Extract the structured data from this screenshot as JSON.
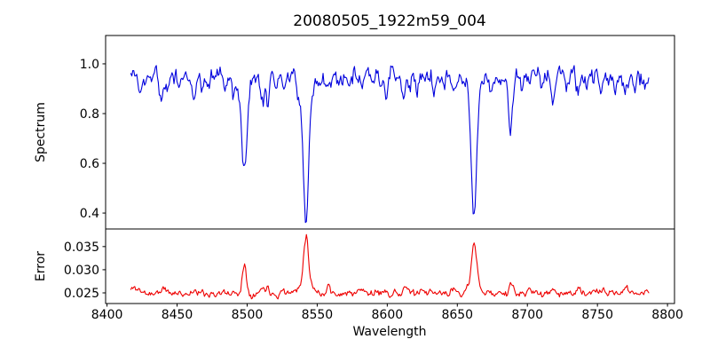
{
  "chart_data": {
    "type": "line",
    "title": "20080505_1922m59_004",
    "xlabel": "Wavelength",
    "xlim": [
      8399,
      8805
    ],
    "xticks": [
      8400,
      8450,
      8500,
      8550,
      8600,
      8650,
      8700,
      8750,
      8800
    ],
    "xtick_labels": [
      "8400",
      "8450",
      "8500",
      "8550",
      "8600",
      "8650",
      "8700",
      "8750",
      "8800"
    ],
    "x_data_range": [
      8417,
      8787
    ],
    "sample_step": 0.7,
    "features_format": "[center_wavelength_angstrom, amplitude, gaussian_sigma_angstrom]",
    "panels": [
      {
        "name": "spectrum",
        "ylabel": "Spectrum",
        "line_color": "#0000dd",
        "ylim": [
          0.336,
          1.114
        ],
        "yticks": [
          0.4,
          0.6,
          0.8,
          1.0
        ],
        "ytick_labels": [
          "0.4",
          "0.6",
          "0.8",
          "1.0"
        ],
        "base_level": 0.955,
        "feature_sign": -1,
        "noise_sigma": 0.034,
        "noise_smooth": 0.5,
        "clamp_max": 1.06,
        "seed": 5,
        "major_lines": [
          {
            "center": 8498,
            "min_flux": 0.58
          },
          {
            "center": 8542,
            "min_flux": 0.38
          },
          {
            "center": 8662,
            "min_flux": 0.38
          },
          {
            "center": 8688,
            "min_flux": 0.71
          }
        ],
        "features": [
          [
            8424,
            0.06,
            1.2
          ],
          [
            8427,
            0.05,
            1.0
          ],
          [
            8439,
            0.1,
            1.3
          ],
          [
            8443,
            0.05,
            1.0
          ],
          [
            8452,
            0.04,
            1.0
          ],
          [
            8462,
            0.08,
            1.2
          ],
          [
            8468,
            0.06,
            1.0
          ],
          [
            8472,
            0.05,
            1.0
          ],
          [
            8484,
            0.04,
            1.0
          ],
          [
            8490,
            0.05,
            1.0
          ],
          [
            8498,
            0.33,
            2.0
          ],
          [
            8498,
            0.04,
            6.0
          ],
          [
            8511,
            0.1,
            1.4
          ],
          [
            8515,
            0.08,
            1.2
          ],
          [
            8521,
            0.05,
            1.0
          ],
          [
            8526,
            0.06,
            1.1
          ],
          [
            8536,
            0.05,
            1.2
          ],
          [
            8542,
            0.52,
            1.9
          ],
          [
            8542,
            0.05,
            7.0
          ],
          [
            8556,
            0.05,
            1.0
          ],
          [
            8560,
            0.04,
            1.0
          ],
          [
            8572,
            0.04,
            1.0
          ],
          [
            8582,
            0.06,
            1.2
          ],
          [
            8590,
            0.04,
            1.0
          ],
          [
            8599,
            0.05,
            1.0
          ],
          [
            8611,
            0.09,
            1.3
          ],
          [
            8621,
            0.05,
            1.0
          ],
          [
            8633,
            0.04,
            1.0
          ],
          [
            8640,
            0.04,
            1.0
          ],
          [
            8648,
            0.08,
            1.2
          ],
          [
            8662,
            0.52,
            1.9
          ],
          [
            8662,
            0.05,
            7.0
          ],
          [
            8674,
            0.06,
            1.1
          ],
          [
            8679,
            0.05,
            1.0
          ],
          [
            8688,
            0.24,
            1.5
          ],
          [
            8696,
            0.05,
            1.0
          ],
          [
            8702,
            0.05,
            1.0
          ],
          [
            8710,
            0.05,
            1.0
          ],
          [
            8718,
            0.09,
            1.3
          ],
          [
            8728,
            0.05,
            1.0
          ],
          [
            8736,
            0.08,
            1.2
          ],
          [
            8742,
            0.05,
            1.0
          ],
          [
            8752,
            0.07,
            1.1
          ],
          [
            8757,
            0.04,
            1.0
          ],
          [
            8763,
            0.05,
            1.0
          ],
          [
            8770,
            0.08,
            1.2
          ],
          [
            8777,
            0.07,
            1.1
          ],
          [
            8784,
            0.05,
            1.0
          ]
        ]
      },
      {
        "name": "error",
        "ylabel": "Error",
        "line_color": "#ee0000",
        "ylim": [
          0.0227,
          0.0388
        ],
        "yticks": [
          0.025,
          0.03,
          0.035
        ],
        "ytick_labels": [
          "0.025",
          "0.030",
          "0.035"
        ],
        "base_level": 0.0249,
        "feature_sign": 1,
        "noise_sigma": 0.0007,
        "noise_smooth": 0.5,
        "clamp_max": null,
        "seed": 11,
        "features": [
          [
            8420,
            0.0012,
            3.0
          ],
          [
            8440,
            0.0009,
            2.0
          ],
          [
            8462,
            0.0006,
            1.5
          ],
          [
            8498,
            0.0062,
            1.5
          ],
          [
            8511,
            0.0014,
            1.2
          ],
          [
            8515,
            0.0016,
            1.0
          ],
          [
            8526,
            0.0008,
            1.2
          ],
          [
            8542,
            0.0103,
            1.7
          ],
          [
            8542,
            0.0024,
            4.5
          ],
          [
            8558,
            0.0018,
            1.0
          ],
          [
            8582,
            0.0008,
            1.4
          ],
          [
            8599,
            0.001,
            1.2
          ],
          [
            8613,
            0.0016,
            1.3
          ],
          [
            8648,
            0.001,
            1.4
          ],
          [
            8662,
            0.0085,
            1.7
          ],
          [
            8662,
            0.002,
            4.5
          ],
          [
            8688,
            0.0018,
            1.2
          ],
          [
            8702,
            0.0007,
            1.2
          ],
          [
            8718,
            0.0009,
            1.4
          ],
          [
            8736,
            0.0008,
            1.4
          ],
          [
            8752,
            0.0008,
            1.4
          ],
          [
            8770,
            0.0013,
            1.6
          ],
          [
            8784,
            0.0008,
            1.4
          ]
        ]
      }
    ]
  }
}
